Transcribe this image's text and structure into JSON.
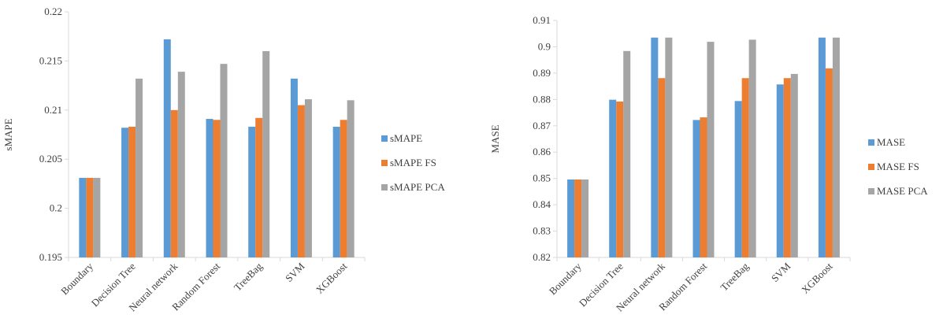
{
  "chart_data": [
    {
      "type": "bar",
      "categories": [
        "Boundary",
        "Decision Tree",
        "Neural network",
        "Random Forest",
        "TreeBag",
        "SVM",
        "XGBoost"
      ],
      "series": [
        {
          "name": "sMAPE",
          "color": "#5b9bd5",
          "values": [
            0.2031,
            0.2082,
            0.2172,
            0.2091,
            0.2083,
            0.2132,
            0.2083
          ]
        },
        {
          "name": "sMAPE FS",
          "color": "#ed7d31",
          "values": [
            0.2031,
            0.2083,
            0.21,
            0.209,
            0.2092,
            0.2105,
            0.209
          ]
        },
        {
          "name": "sMAPE PCA",
          "color": "#a5a5a5",
          "values": [
            0.2031,
            0.2132,
            0.2139,
            0.2147,
            0.216,
            0.2111,
            0.211
          ]
        }
      ],
      "title": "",
      "xlabel": "",
      "ylabel": "sMAPE",
      "ylim": [
        0.195,
        0.22
      ],
      "yticks": [
        0.195,
        0.2,
        0.205,
        0.21,
        0.215,
        0.22
      ],
      "ytick_labels": [
        "0.195",
        "0.2",
        "0.205",
        "0.21",
        "0.215",
        "0.22"
      ],
      "grid": false,
      "legend_position": "right"
    },
    {
      "type": "bar",
      "categories": [
        "Boundary",
        "Decision Tree",
        "Neural network",
        "Random Forest",
        "TreeBag",
        "SVM",
        "XGBoost"
      ],
      "series": [
        {
          "name": "MASE",
          "color": "#5b9bd5",
          "values": [
            0.8496,
            0.8799,
            0.9035,
            0.8722,
            0.8794,
            0.8857,
            0.9035
          ]
        },
        {
          "name": "MASE FS",
          "color": "#ed7d31",
          "values": [
            0.8496,
            0.8792,
            0.8881,
            0.8732,
            0.8881,
            0.8881,
            0.8918
          ]
        },
        {
          "name": "MASE PCA",
          "color": "#a5a5a5",
          "values": [
            0.8496,
            0.8984,
            0.9035,
            0.9019,
            0.9027,
            0.8897,
            0.9035
          ]
        }
      ],
      "title": "",
      "xlabel": "",
      "ylabel": "MASE",
      "ylim": [
        0.82,
        0.91
      ],
      "yticks": [
        0.82,
        0.83,
        0.84,
        0.85,
        0.86,
        0.87,
        0.88,
        0.89,
        0.9,
        0.91
      ],
      "ytick_labels": [
        "0.82",
        "0.83",
        "0.84",
        "0.85",
        "0.86",
        "0.87",
        "0.88",
        "0.89",
        "0.9",
        "0.91"
      ],
      "grid": false,
      "legend_position": "right"
    }
  ]
}
